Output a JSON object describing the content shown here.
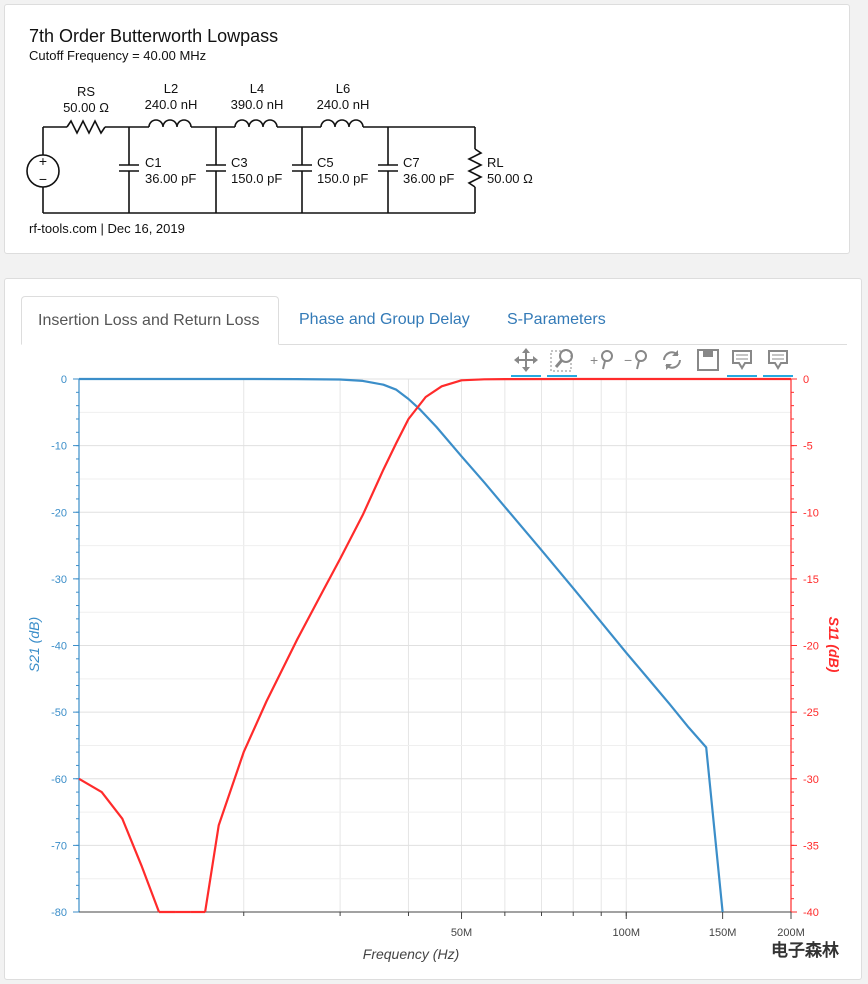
{
  "filter": {
    "title": "7th Order Butterworth Lowpass",
    "subtitle": "Cutoff Frequency = 40.00 MHz",
    "credit": "rf-tools.com | Dec 16, 2019",
    "components": {
      "rs_name": "RS",
      "rs_value": "50.00 Ω",
      "l2_name": "L2",
      "l2_value": "240.0 nH",
      "l4_name": "L4",
      "l4_value": "390.0 nH",
      "l6_name": "L6",
      "l6_value": "240.0 nH",
      "c1_name": "C1",
      "c1_value": "36.00 pF",
      "c3_name": "C3",
      "c3_value": "150.0 pF",
      "c5_name": "C5",
      "c5_value": "150.0 pF",
      "c7_name": "C7",
      "c7_value": "36.00 pF",
      "rl_name": "RL",
      "rl_value": "50.00 Ω"
    }
  },
  "tabs": [
    {
      "label": "Insertion Loss and Return Loss",
      "active": true
    },
    {
      "label": "Phase and Group Delay",
      "active": false
    },
    {
      "label": "S-Parameters",
      "active": false
    }
  ],
  "toolbar": {
    "icons": [
      "pan-icon",
      "box-zoom-icon",
      "zoom-in-icon",
      "zoom-out-icon",
      "reset-icon",
      "save-icon",
      "hover-icon",
      "hover-icon-2"
    ]
  },
  "watermark": "电子森林",
  "chart_data": {
    "type": "line",
    "xlabel": "Frequency (Hz)",
    "ylabel_left": "S21 (dB)",
    "ylabel_right": "S11 (dB)",
    "xscale": "log",
    "xlim_hz": [
      10000000,
      200000000
    ],
    "ylim_left": [
      -80,
      0
    ],
    "ylim_right": [
      -40,
      0
    ],
    "x_ticks": [
      {
        "value": 50000000,
        "label": "50M"
      },
      {
        "value": 100000000,
        "label": "100M"
      },
      {
        "value": 150000000,
        "label": "150M"
      },
      {
        "value": 200000000,
        "label": "200M"
      }
    ],
    "y_ticks_left": [
      "0",
      "-10",
      "-20",
      "-30",
      "-40",
      "-50",
      "-60",
      "-70",
      "-80"
    ],
    "y_ticks_right": [
      "0",
      "-5",
      "-10",
      "-15",
      "-20",
      "-25",
      "-30",
      "-35",
      "-40"
    ],
    "grid": true,
    "series": [
      {
        "name": "S21 (dB)",
        "axis": "left",
        "color": "#3b8ec9",
        "x": [
          10000000,
          15000000,
          20000000,
          25000000,
          30000000,
          33000000,
          36000000,
          38000000,
          40000000,
          42000000,
          45000000,
          50000000,
          55000000,
          60000000,
          70000000,
          80000000,
          90000000,
          100000000,
          110000000,
          120000000,
          130000000,
          140000000,
          150000000
        ],
        "values": [
          0,
          0,
          -0.0001,
          -0.01,
          -0.07,
          -0.28,
          -0.85,
          -1.6,
          -3.0,
          -4.6,
          -7.2,
          -11.6,
          -15.5,
          -19.2,
          -25.7,
          -31.4,
          -36.5,
          -41.1,
          -45.1,
          -48.8,
          -52.3,
          -55.3,
          -80
        ]
      },
      {
        "name": "S11 (dB)",
        "axis": "right",
        "color": "#ff2b2b",
        "x": [
          10000000,
          11000000,
          12000000,
          13000000,
          14000000,
          15000000,
          16000000,
          17000000,
          18000000,
          20000000,
          22000000,
          25000000,
          28000000,
          30000000,
          33000000,
          36000000,
          38000000,
          40000000,
          43000000,
          46000000,
          50000000,
          55000000,
          60000000,
          80000000,
          200000000
        ],
        "values": [
          -30.0,
          -31.0,
          -33.0,
          -36.5,
          -40,
          -40,
          -40,
          -40,
          -33.5,
          -28.0,
          -24.2,
          -19.6,
          -15.8,
          -13.5,
          -10.2,
          -6.8,
          -4.8,
          -3.0,
          -1.35,
          -0.55,
          -0.1,
          -0.02,
          -0.005,
          0,
          0
        ]
      }
    ]
  }
}
